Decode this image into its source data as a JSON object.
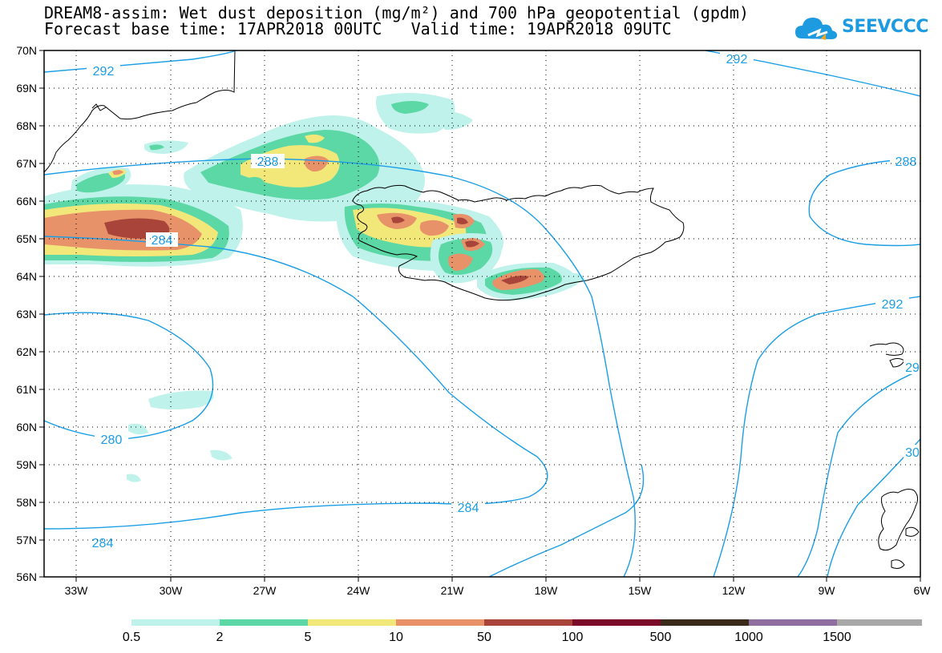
{
  "title": {
    "line1": "DREAM8-assim: Wet dust deposition (mg/m²) and 700 hPa geopotential (gpdm)",
    "line2_base": "Forecast base time: 17APR2018 00UTC",
    "line2_valid": "Valid time: 19APR2018 09UTC"
  },
  "logo": {
    "text": "SEEVCCC",
    "icon": "cloud-icon"
  },
  "map": {
    "lat_labels": [
      "70N",
      "69N",
      "68N",
      "67N",
      "66N",
      "65N",
      "64N",
      "63N",
      "62N",
      "61N",
      "60N",
      "59N",
      "58N",
      "57N",
      "56N"
    ],
    "lon_labels": [
      "33W",
      "30W",
      "27W",
      "24W",
      "21W",
      "18W",
      "15W",
      "12W",
      "9W",
      "6W"
    ],
    "contour_labels": [
      {
        "text": "292"
      },
      {
        "text": "292"
      },
      {
        "text": "288"
      },
      {
        "text": "288"
      },
      {
        "text": "284"
      },
      {
        "text": "280"
      },
      {
        "text": "284"
      },
      {
        "text": "284"
      },
      {
        "text": "292"
      },
      {
        "text": "29"
      },
      {
        "text": "30"
      }
    ],
    "contour_color": "#1a9ee6",
    "coast_color": "#000000"
  },
  "legend": {
    "labels": [
      "0.5",
      "2",
      "5",
      "10",
      "50",
      "100",
      "500",
      "1000",
      "1500"
    ],
    "colors": [
      "#bff2ea",
      "#5cd8a6",
      "#f2e87a",
      "#e8926a",
      "#a8443a",
      "#7a0a28",
      "#3a2a1a",
      "#8f6f9f",
      "#a8a8a8"
    ]
  }
}
